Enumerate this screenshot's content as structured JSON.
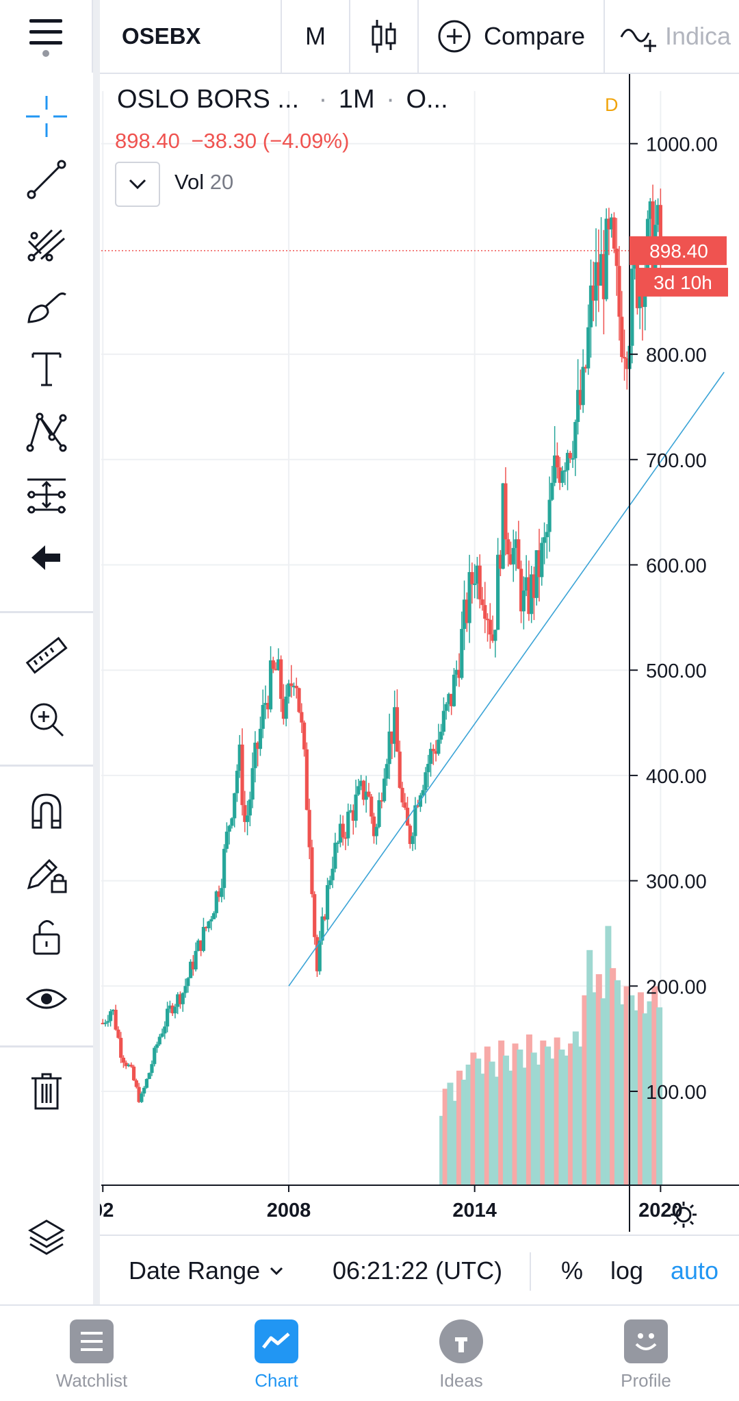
{
  "toolbar": {
    "symbol": "OSEBX",
    "interval": "M",
    "compare_label": "Compare",
    "indicators_label": "Indica"
  },
  "legend": {
    "title": "OSLO BORS ...",
    "interval": "1M",
    "source": "O...",
    "price": "898.40",
    "change": "−38.30 (−4.09%)",
    "vol_label": "Vol",
    "vol_value": "20",
    "flag": "D"
  },
  "price_tag": {
    "value": "898.40",
    "countdown": "3d 10h"
  },
  "bottom_bar": {
    "date_range": "Date Range",
    "time": "06:21:22 (UTC)",
    "percent": "%",
    "log": "log",
    "auto": "auto"
  },
  "tabs": [
    {
      "label": "Watchlist",
      "icon": "list-icon",
      "active": false
    },
    {
      "label": "Chart",
      "icon": "chart-icon",
      "active": true
    },
    {
      "label": "Ideas",
      "icon": "lightbulb-icon",
      "active": false
    },
    {
      "label": "Profile",
      "icon": "smiley-icon",
      "active": false
    }
  ],
  "sidebar_tools": [
    "crosshair-icon",
    "trend-line-icon",
    "pitchfork-icon",
    "brush-icon",
    "text-icon",
    "pattern-icon",
    "forecast-icon",
    "back-arrow-icon",
    "ruler-icon",
    "zoom-in-icon",
    "magnet-icon",
    "lock-drawing-icon",
    "unlock-icon",
    "eye-icon",
    "trash-icon",
    "layers-icon"
  ],
  "colors": {
    "up": "#26a69a",
    "down": "#ef5350",
    "accent": "#2196f3",
    "trendline": "#3aa3d6"
  },
  "chart_data": {
    "type": "candlestick",
    "ylabel_ticks": [
      "1000.00",
      "800.00",
      "700.00",
      "600.00",
      "500.00",
      "400.00",
      "300.00",
      "200.00",
      "100.00"
    ],
    "yticks": [
      1000,
      800,
      700,
      600,
      500,
      400,
      300,
      200,
      100
    ],
    "xticks": [
      {
        "label": "02",
        "year": 2002
      },
      {
        "label": "2008",
        "year": 2008
      },
      {
        "label": "2014",
        "year": 2014
      },
      {
        "label": "2020",
        "year": 2020
      }
    ],
    "ylim": [
      0,
      1050
    ],
    "xlim": [
      2001.95,
      2022.2
    ],
    "grid": true,
    "last_price": 898.4,
    "path": [
      [
        2002.0,
        165
      ],
      [
        2002.3,
        180
      ],
      [
        2002.6,
        135
      ],
      [
        2002.9,
        120
      ],
      [
        2003.2,
        90
      ],
      [
        2003.5,
        118
      ],
      [
        2003.8,
        150
      ],
      [
        2004.2,
        180
      ],
      [
        2004.6,
        195
      ],
      [
        2005.0,
        230
      ],
      [
        2005.4,
        260
      ],
      [
        2005.8,
        300
      ],
      [
        2006.2,
        380
      ],
      [
        2006.4,
        420
      ],
      [
        2006.6,
        350
      ],
      [
        2006.9,
        410
      ],
      [
        2007.3,
        480
      ],
      [
        2007.6,
        500
      ],
      [
        2007.9,
        455
      ],
      [
        2008.2,
        510
      ],
      [
        2008.45,
        430
      ],
      [
        2008.7,
        330
      ],
      [
        2008.9,
        210
      ],
      [
        2009.1,
        260
      ],
      [
        2009.4,
        320
      ],
      [
        2009.8,
        350
      ],
      [
        2010.1,
        370
      ],
      [
        2010.5,
        390
      ],
      [
        2010.8,
        340
      ],
      [
        2011.1,
        420
      ],
      [
        2011.4,
        450
      ],
      [
        2011.7,
        360
      ],
      [
        2011.9,
        340
      ],
      [
        2012.2,
        390
      ],
      [
        2012.6,
        420
      ],
      [
        2012.9,
        440
      ],
      [
        2013.3,
        480
      ],
      [
        2013.7,
        550
      ],
      [
        2014.0,
        600
      ],
      [
        2014.3,
        580
      ],
      [
        2014.6,
        530
      ],
      [
        2014.9,
        650
      ],
      [
        2015.2,
        620
      ],
      [
        2015.6,
        560
      ],
      [
        2015.9,
        580
      ],
      [
        2016.3,
        620
      ],
      [
        2016.6,
        690
      ],
      [
        2016.9,
        710
      ],
      [
        2017.2,
        730
      ],
      [
        2017.5,
        760
      ],
      [
        2017.8,
        860
      ],
      [
        2018.1,
        880
      ],
      [
        2018.4,
        900
      ],
      [
        2018.7,
        830
      ],
      [
        2018.9,
        820
      ],
      [
        2019.2,
        870
      ],
      [
        2019.5,
        890
      ],
      [
        2019.8,
        920
      ],
      [
        2020.0,
        898.4
      ]
    ],
    "volume": [
      [
        2012.95,
        0.23
      ],
      [
        2013.05,
        0.32
      ],
      [
        2013.2,
        0.34
      ],
      [
        2013.35,
        0.28
      ],
      [
        2013.5,
        0.38
      ],
      [
        2013.65,
        0.35
      ],
      [
        2013.8,
        0.4
      ],
      [
        2013.95,
        0.44
      ],
      [
        2014.1,
        0.42
      ],
      [
        2014.25,
        0.37
      ],
      [
        2014.4,
        0.46
      ],
      [
        2014.55,
        0.41
      ],
      [
        2014.7,
        0.36
      ],
      [
        2014.85,
        0.48
      ],
      [
        2015.0,
        0.43
      ],
      [
        2015.15,
        0.38
      ],
      [
        2015.3,
        0.47
      ],
      [
        2015.45,
        0.45
      ],
      [
        2015.6,
        0.39
      ],
      [
        2015.75,
        0.5
      ],
      [
        2015.9,
        0.44
      ],
      [
        2016.05,
        0.4
      ],
      [
        2016.2,
        0.48
      ],
      [
        2016.35,
        0.46
      ],
      [
        2016.5,
        0.42
      ],
      [
        2016.65,
        0.49
      ],
      [
        2016.8,
        0.45
      ],
      [
        2016.95,
        0.43
      ],
      [
        2017.1,
        0.47
      ],
      [
        2017.25,
        0.51
      ],
      [
        2017.4,
        0.46
      ],
      [
        2017.55,
        0.63
      ],
      [
        2017.7,
        0.78
      ],
      [
        2017.85,
        0.64
      ],
      [
        2018.0,
        0.7
      ],
      [
        2018.15,
        0.62
      ],
      [
        2018.3,
        0.86
      ],
      [
        2018.45,
        0.72
      ],
      [
        2018.6,
        0.68
      ],
      [
        2018.75,
        0.6
      ],
      [
        2018.9,
        0.66
      ],
      [
        2019.05,
        0.63
      ],
      [
        2019.2,
        0.58
      ],
      [
        2019.35,
        0.64
      ],
      [
        2019.5,
        0.57
      ],
      [
        2019.65,
        0.61
      ],
      [
        2019.8,
        0.66
      ],
      [
        2019.95,
        0.59
      ]
    ],
    "trendline": [
      [
        2008.0,
        200
      ],
      [
        2022.05,
        783
      ]
    ]
  }
}
